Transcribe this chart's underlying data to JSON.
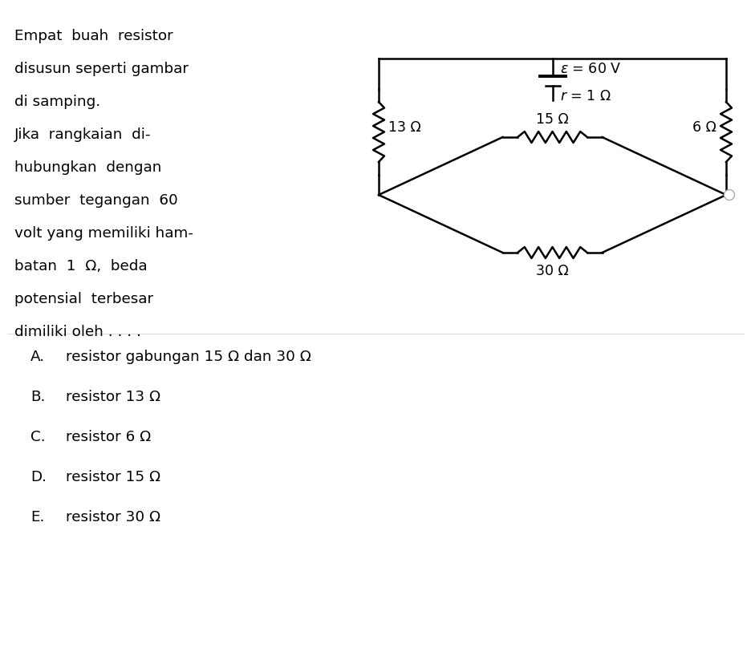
{
  "bg_color": "#ffffff",
  "text_color": "#000000",
  "problem_text_lines": [
    "Empat  buah  resistor",
    "disusun seperti gambar",
    "di samping.",
    "Jika  rangkaian  di-",
    "hubungkan  dengan",
    "sumber  tegangan  60",
    "volt yang memiliki ham-",
    "batan  1  Ω,  beda",
    "potensial  terbesar",
    "dimiliki oleh . . . ."
  ],
  "choices": [
    [
      "A.",
      "resistor gabungan 15 Ω dan 30 Ω"
    ],
    [
      "B.",
      "resistor 13 Ω"
    ],
    [
      "C.",
      "resistor 6 Ω"
    ],
    [
      "D.",
      "resistor 15 Ω"
    ],
    [
      "E.",
      "resistor 30 Ω"
    ]
  ],
  "circuit": {
    "battery_label": "ε = 60 V",
    "r_label": "r = 1 Ω",
    "r13_label": "13 Ω",
    "r6_label": "6 Ω",
    "r15_label": "15 Ω",
    "r30_label": "30 Ω"
  }
}
